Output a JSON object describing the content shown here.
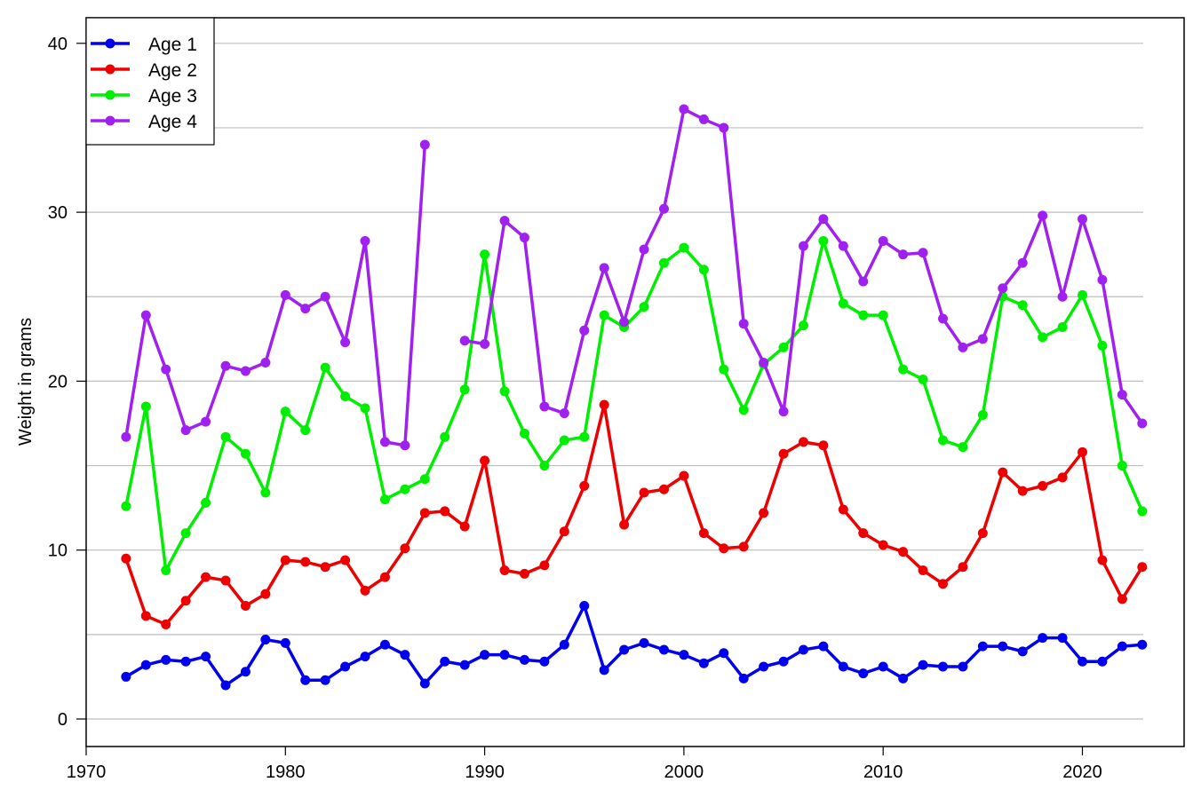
{
  "chart_data": {
    "type": "line",
    "title": "",
    "xlabel": "",
    "ylabel": "Weight in grams",
    "xlim": [
      1970,
      2025
    ],
    "ylim": [
      -1.6,
      41
    ],
    "x_ticks": [
      1970,
      1980,
      1990,
      2000,
      2010,
      2020
    ],
    "y_ticks": [
      0,
      10,
      20,
      30,
      40
    ],
    "y_minor_grid": [
      0,
      5,
      10,
      15,
      20,
      25,
      30,
      35,
      40
    ],
    "grid": "horizontal",
    "legend_position": "top-left",
    "x": [
      1972,
      1973,
      1974,
      1975,
      1976,
      1977,
      1978,
      1979,
      1980,
      1981,
      1982,
      1983,
      1984,
      1985,
      1986,
      1987,
      1988,
      1989,
      1990,
      1991,
      1992,
      1993,
      1994,
      1995,
      1996,
      1997,
      1998,
      1999,
      2000,
      2001,
      2002,
      2003,
      2004,
      2005,
      2006,
      2007,
      2008,
      2009,
      2010,
      2011,
      2012,
      2013,
      2014,
      2015,
      2016,
      2017,
      2018,
      2019,
      2020,
      2021,
      2022,
      2023
    ],
    "series": [
      {
        "name": "Age 1",
        "color": "#0000ee",
        "values": [
          2.5,
          3.2,
          3.5,
          3.4,
          3.7,
          2.0,
          2.8,
          4.7,
          4.5,
          2.3,
          2.3,
          3.1,
          3.7,
          4.4,
          3.8,
          2.1,
          3.4,
          3.2,
          3.8,
          3.8,
          3.5,
          3.4,
          4.4,
          6.7,
          2.9,
          4.1,
          4.5,
          4.1,
          3.8,
          3.3,
          3.9,
          2.4,
          3.1,
          3.4,
          4.1,
          4.3,
          3.1,
          2.7,
          3.1,
          2.4,
          3.2,
          3.1,
          3.1,
          4.3,
          4.3,
          4.0,
          4.8,
          4.8,
          3.4,
          3.4,
          4.3,
          4.4
        ]
      },
      {
        "name": "Age 2",
        "color": "#ee0000",
        "values": [
          9.5,
          6.1,
          5.6,
          7.0,
          8.4,
          8.2,
          6.7,
          7.4,
          9.4,
          9.3,
          9.0,
          9.4,
          7.6,
          8.4,
          10.1,
          12.2,
          12.3,
          11.4,
          15.3,
          8.8,
          8.6,
          9.1,
          11.1,
          13.8,
          18.6,
          11.5,
          13.4,
          13.6,
          14.4,
          11.0,
          10.1,
          10.2,
          12.2,
          15.7,
          16.4,
          16.2,
          12.4,
          11.0,
          10.3,
          9.9,
          8.8,
          8.0,
          9.0,
          11.0,
          14.6,
          13.5,
          13.8,
          14.3,
          15.8,
          9.4,
          7.1,
          9.0
        ]
      },
      {
        "name": "Age 3",
        "color": "#00ee00",
        "values": [
          12.6,
          18.5,
          8.8,
          11.0,
          12.8,
          16.7,
          15.7,
          13.4,
          18.2,
          17.1,
          20.8,
          19.1,
          18.4,
          13.0,
          13.6,
          14.2,
          16.7,
          19.5,
          27.5,
          19.4,
          16.9,
          15.0,
          16.5,
          16.7,
          23.9,
          23.2,
          24.4,
          27.0,
          27.9,
          26.6,
          20.7,
          18.3,
          21.0,
          22.0,
          23.3,
          28.3,
          24.6,
          23.9,
          23.9,
          20.7,
          20.1,
          16.5,
          16.1,
          18.0,
          25.0,
          24.5,
          22.6,
          23.2,
          25.1,
          22.1,
          15.0,
          12.3
        ]
      },
      {
        "name": "Age 4",
        "color": "#a020f0",
        "values": [
          16.7,
          23.9,
          20.7,
          17.1,
          17.6,
          20.9,
          20.6,
          21.1,
          25.1,
          24.3,
          25.0,
          22.3,
          28.3,
          16.4,
          16.2,
          34.0,
          null,
          22.4,
          22.2,
          29.5,
          28.5,
          18.5,
          18.1,
          23.0,
          26.7,
          23.5,
          27.8,
          30.2,
          36.1,
          35.5,
          35.0,
          23.4,
          21.1,
          18.2,
          28.0,
          29.6,
          28.0,
          25.9,
          28.3,
          27.5,
          27.6,
          23.7,
          22.0,
          22.5,
          25.5,
          27.0,
          29.8,
          25.0,
          29.6,
          26.0,
          19.2,
          17.5
        ]
      }
    ]
  },
  "legend": {
    "items": [
      {
        "label": "Age 1",
        "color": "#0000ee"
      },
      {
        "label": "Age 2",
        "color": "#ee0000"
      },
      {
        "label": "Age 3",
        "color": "#00ee00"
      },
      {
        "label": "Age 4",
        "color": "#a020f0"
      }
    ]
  },
  "axes": {
    "ylabel": "Weight in grams"
  }
}
